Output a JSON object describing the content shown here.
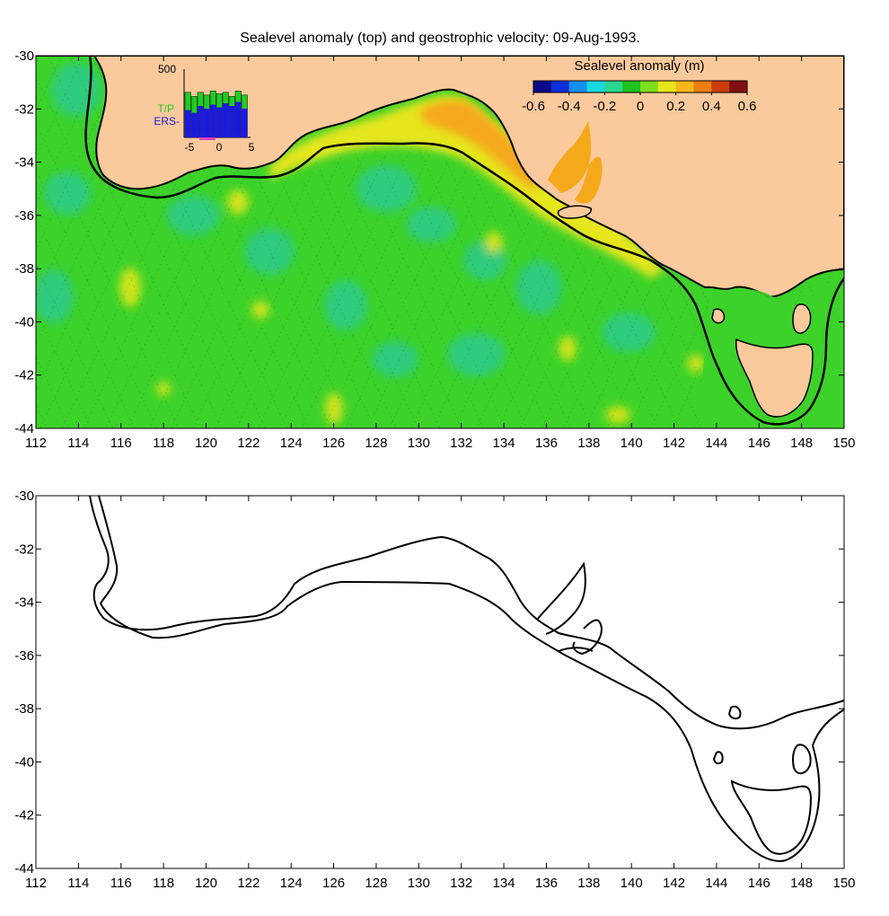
{
  "title": "Sealevel anomaly (top) and geostrophic velocity: 09-Aug-1993.",
  "colorbar": {
    "title": "Sealevel anomaly (m)",
    "ticks": [
      "-0.6",
      "-0.4",
      "-0.2",
      "0",
      "0.2",
      "0.4",
      "0.6"
    ],
    "range": [
      -0.6,
      0.6
    ],
    "colors": [
      "#0a0a8c",
      "#0b2fd8",
      "#1190f0",
      "#18d8e0",
      "#2ad890",
      "#1fc21f",
      "#80dd20",
      "#e6e61a",
      "#f5b81a",
      "#ee7d12",
      "#cc3c0c",
      "#801010"
    ]
  },
  "inset": {
    "ymax_label": "500",
    "xticks": [
      "-5",
      "0",
      "5"
    ],
    "series": [
      {
        "name": "T/P",
        "color": "#22cc22",
        "values": [
          330,
          300,
          330,
          310,
          340,
          320,
          330,
          300,
          340,
          310
        ]
      },
      {
        "name": "ERS-",
        "color": "#1a1ae0",
        "values": [
          200,
          180,
          230,
          210,
          240,
          220,
          250,
          230,
          260,
          210
        ]
      }
    ]
  },
  "axes": {
    "x_ticks": [
      "112",
      "114",
      "116",
      "118",
      "120",
      "122",
      "124",
      "126",
      "128",
      "130",
      "132",
      "134",
      "136",
      "138",
      "140",
      "142",
      "144",
      "146",
      "148",
      "150"
    ],
    "y_ticks": [
      "-30",
      "-32",
      "-34",
      "-36",
      "-38",
      "-40",
      "-42",
      "-44"
    ],
    "xlim": [
      112,
      150
    ],
    "ylim": [
      -44,
      -30
    ]
  },
  "colors": {
    "land": "#fac99c",
    "ocean": "#3cd22a",
    "ocean_light": "#5ae03a",
    "anomaly_cyan": "#28c8a0",
    "anomaly_yellow": "#e6e61a",
    "anomaly_orange": "#f5a81a",
    "coast": "#000000"
  }
}
